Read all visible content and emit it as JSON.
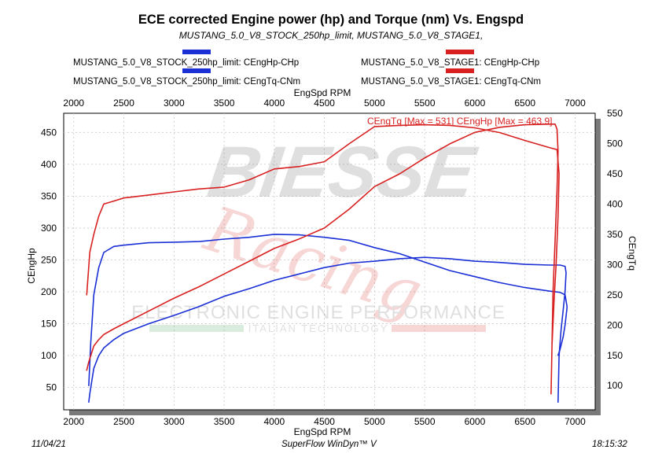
{
  "chart_data": {
    "type": "line",
    "title": "ECE corrected Engine power (hp) and Torque (nm) Vs. Engspd",
    "subtitle": "MUSTANG_5.0_V8_STOCK_250hp_limit, MUSTANG_5.0_V8_STAGE1,",
    "xlabel": "EngSpd RPM",
    "ylabel_left": "CEngHp",
    "ylabel_right": "CEngTq",
    "xlim": [
      1900,
      7200
    ],
    "ylim_left": [
      15,
      480
    ],
    "ylim_right": [
      60,
      550
    ],
    "x_ticks": [
      2000,
      2500,
      3000,
      3500,
      4000,
      4500,
      5000,
      5500,
      6000,
      6500,
      7000
    ],
    "y_left_ticks": [
      50,
      100,
      150,
      200,
      250,
      300,
      350,
      400,
      450
    ],
    "y_right_ticks": [
      100,
      150,
      200,
      250,
      300,
      350,
      400,
      450,
      500,
      550
    ],
    "grid": true,
    "annotation": "CEngTq [Max = 531] CEngHp [Max = 463.9]",
    "series": [
      {
        "name": "MUSTANG_5.0_V8_STOCK_250hp_limit: CEngHp-CHp",
        "color": "#1a2fd6",
        "axis": "left",
        "x": [
          2150,
          2160,
          2200,
          2250,
          2300,
          2400,
          2500,
          2750,
          3000,
          3250,
          3500,
          3750,
          4000,
          4250,
          4500,
          4750,
          5000,
          5250,
          5500,
          5750,
          6000,
          6250,
          6500,
          6750,
          6850,
          6900,
          6910,
          6900,
          6880,
          6860,
          6840,
          6830
        ],
        "y": [
          27,
          40,
          80,
          100,
          112,
          125,
          135,
          150,
          163,
          177,
          193,
          205,
          218,
          228,
          238,
          245,
          248,
          252,
          254,
          252,
          248,
          246,
          243,
          242,
          242,
          240,
          230,
          200,
          170,
          140,
          100,
          27
        ]
      },
      {
        "name": "MUSTANG_5.0_V8_STOCK_250hp_limit: CEngTq-CNm",
        "color": "#1a2fd6",
        "axis": "right",
        "x": [
          2150,
          2170,
          2200,
          2250,
          2300,
          2400,
          2500,
          2750,
          3000,
          3250,
          3500,
          3750,
          4000,
          4250,
          4500,
          4750,
          5000,
          5250,
          5500,
          5750,
          6000,
          6250,
          6500,
          6750,
          6850,
          6900,
          6920,
          6900,
          6880,
          6850,
          6830
        ],
        "y": [
          100,
          170,
          250,
          295,
          320,
          330,
          332,
          336,
          337,
          338,
          342,
          345,
          350,
          349,
          345,
          340,
          328,
          318,
          304,
          290,
          280,
          270,
          262,
          256,
          254,
          250,
          230,
          200,
          180,
          160,
          150
        ]
      },
      {
        "name": "MUSTANG_5.0_V8_STAGE1: CEngHp-CHp",
        "color": "#d82020",
        "axis": "left",
        "x": [
          2130,
          2150,
          2200,
          2250,
          2300,
          2400,
          2500,
          2750,
          3000,
          3250,
          3500,
          3750,
          4000,
          4250,
          4500,
          4750,
          5000,
          5250,
          5500,
          5750,
          6000,
          6250,
          6500,
          6750,
          6800,
          6820,
          6830,
          6820,
          6800,
          6780,
          6760
        ],
        "y": [
          77,
          90,
          115,
          125,
          133,
          142,
          150,
          170,
          190,
          208,
          228,
          248,
          268,
          283,
          300,
          330,
          365,
          385,
          410,
          432,
          450,
          458,
          462,
          463,
          463,
          455,
          420,
          360,
          280,
          200,
          40
        ]
      },
      {
        "name": "MUSTANG_5.0_V8_STAGE1: CEngTq-CNm",
        "color": "#d82020",
        "axis": "right",
        "x": [
          2130,
          2160,
          2200,
          2250,
          2300,
          2400,
          2500,
          2750,
          3000,
          3250,
          3500,
          3750,
          4000,
          4250,
          4500,
          4750,
          5000,
          5250,
          5500,
          5750,
          6000,
          6250,
          6500,
          6750,
          6820,
          6840,
          6830,
          6810,
          6790,
          6770
        ],
        "y": [
          250,
          320,
          350,
          380,
          400,
          405,
          410,
          415,
          420,
          425,
          428,
          440,
          458,
          462,
          470,
          500,
          528,
          530,
          531,
          530,
          526,
          518,
          505,
          493,
          490,
          450,
          380,
          300,
          240,
          170
        ]
      }
    ]
  },
  "legend": {
    "stock_hp": "MUSTANG_5.0_V8_STOCK_250hp_limit: CEngHp-CHp",
    "stock_tq": "MUSTANG_5.0_V8_STOCK_250hp_limit: CEngTq-CNm",
    "stage1_hp": "MUSTANG_5.0_V8_STAGE1: CEngHp-CHp",
    "stage1_tq": "MUSTANG_5.0_V8_STAGE1: CEngTq-CNm"
  },
  "watermark": {
    "brand": "BIESSE",
    "script": "Racing",
    "line1": "ELECTRONIC ENGINE PERFORMANCE",
    "line2": "ITALIAN TECHNOLOGY"
  },
  "footer": {
    "date": "11/04/21",
    "software": "SuperFlow WinDyn™ V",
    "time": "18:15:32"
  },
  "colors": {
    "stock": "#1a2fd6",
    "stage1": "#d82020",
    "plot_shadow": "#7a7a7a"
  }
}
